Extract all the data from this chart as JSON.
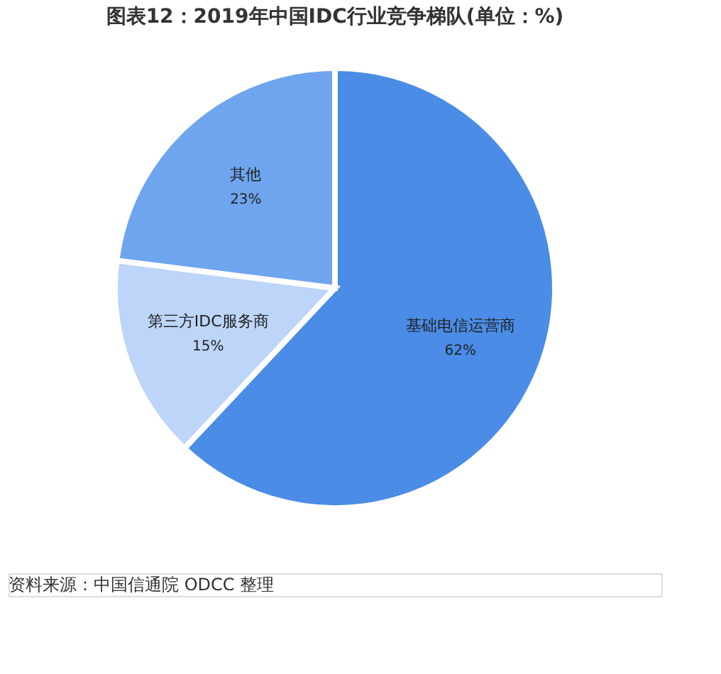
{
  "chart_data": {
    "type": "pie",
    "title": "图表12：2019年中国IDC行业竞争梯队(单位：%)",
    "categories": [
      "基础电信运营商",
      "第三方IDC服务商",
      "其他"
    ],
    "values": [
      62,
      15,
      23
    ],
    "colors": [
      "#4a8ce6",
      "#bcd5f8",
      "#6ea5ee"
    ],
    "value_labels": [
      "62%",
      "15%",
      "23%"
    ],
    "annotations": [
      "资料来源：中国信通院 ODCC 整理"
    ]
  }
}
